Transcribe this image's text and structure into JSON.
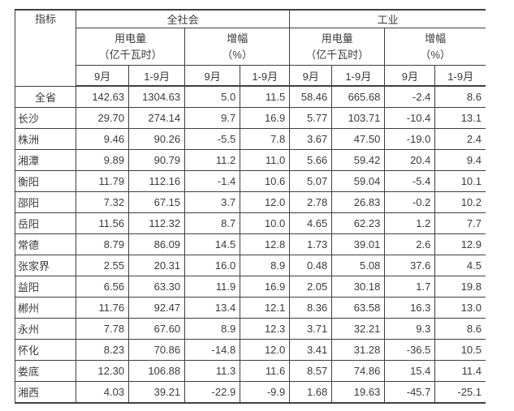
{
  "colors": {
    "background": "#ffffff",
    "border": "#3f3f3f",
    "text": "#3b3b3b"
  },
  "table": {
    "header": {
      "indicator": "指标",
      "groups": [
        {
          "label": "全社会",
          "subgroups": [
            {
              "label": "用电量",
              "unit": "（亿千瓦时）"
            },
            {
              "label": "增幅",
              "unit": "（%）"
            }
          ]
        },
        {
          "label": "工业",
          "subgroups": [
            {
              "label": "用电量",
              "unit": "（亿千瓦时）"
            },
            {
              "label": "增幅",
              "unit": "（%）"
            }
          ]
        }
      ],
      "period_labels": [
        "9月",
        "1-9月"
      ]
    },
    "rows": [
      {
        "region": "全省",
        "is_total": true,
        "values": [
          "142.63",
          "1304.63",
          "5.0",
          "11.5",
          "58.46",
          "665.68",
          "-2.4",
          "8.6"
        ]
      },
      {
        "region": "长沙",
        "is_total": false,
        "values": [
          "29.70",
          "274.14",
          "9.7",
          "16.9",
          "5.77",
          "103.71",
          "-10.4",
          "13.1"
        ]
      },
      {
        "region": "株洲",
        "is_total": false,
        "values": [
          "9.46",
          "90.26",
          "-5.5",
          "7.8",
          "3.67",
          "47.50",
          "-19.0",
          "2.4"
        ]
      },
      {
        "region": "湘潭",
        "is_total": false,
        "values": [
          "9.89",
          "90.79",
          "11.2",
          "11.0",
          "5.66",
          "59.42",
          "20.4",
          "9.4"
        ]
      },
      {
        "region": "衡阳",
        "is_total": false,
        "values": [
          "11.79",
          "112.16",
          "-1.4",
          "10.6",
          "5.07",
          "59.04",
          "-5.4",
          "10.1"
        ]
      },
      {
        "region": "邵阳",
        "is_total": false,
        "values": [
          "7.32",
          "67.15",
          "3.7",
          "12.0",
          "2.78",
          "26.83",
          "-0.2",
          "10.2"
        ]
      },
      {
        "region": "岳阳",
        "is_total": false,
        "values": [
          "11.56",
          "112.32",
          "8.7",
          "10.0",
          "4.65",
          "62.23",
          "1.2",
          "7.7"
        ]
      },
      {
        "region": "常德",
        "is_total": false,
        "values": [
          "8.79",
          "86.09",
          "14.5",
          "12.8",
          "1.73",
          "39.01",
          "2.6",
          "12.9"
        ]
      },
      {
        "region": "张家界",
        "is_total": false,
        "values": [
          "2.55",
          "20.31",
          "16.0",
          "8.9",
          "0.48",
          "5.08",
          "37.6",
          "4.5"
        ]
      },
      {
        "region": "益阳",
        "is_total": false,
        "values": [
          "6.56",
          "63.30",
          "11.9",
          "16.9",
          "2.05",
          "30.18",
          "1.7",
          "19.8"
        ]
      },
      {
        "region": "郴州",
        "is_total": false,
        "values": [
          "11.76",
          "92.47",
          "13.4",
          "12.1",
          "8.36",
          "63.58",
          "16.3",
          "13.0"
        ]
      },
      {
        "region": "永州",
        "is_total": false,
        "values": [
          "7.78",
          "67.60",
          "8.9",
          "12.3",
          "3.71",
          "32.21",
          "9.3",
          "8.6"
        ]
      },
      {
        "region": "怀化",
        "is_total": false,
        "values": [
          "8.23",
          "70.86",
          "-14.8",
          "12.0",
          "3.41",
          "31.28",
          "-36.5",
          "10.5"
        ]
      },
      {
        "region": "娄底",
        "is_total": false,
        "values": [
          "12.30",
          "106.88",
          "11.3",
          "11.6",
          "8.57",
          "74.86",
          "15.4",
          "11.4"
        ]
      },
      {
        "region": "湘西",
        "is_total": false,
        "values": [
          "4.03",
          "39.21",
          "-22.9",
          "-9.9",
          "1.68",
          "19.63",
          "-45.7",
          "-25.1"
        ]
      }
    ]
  }
}
